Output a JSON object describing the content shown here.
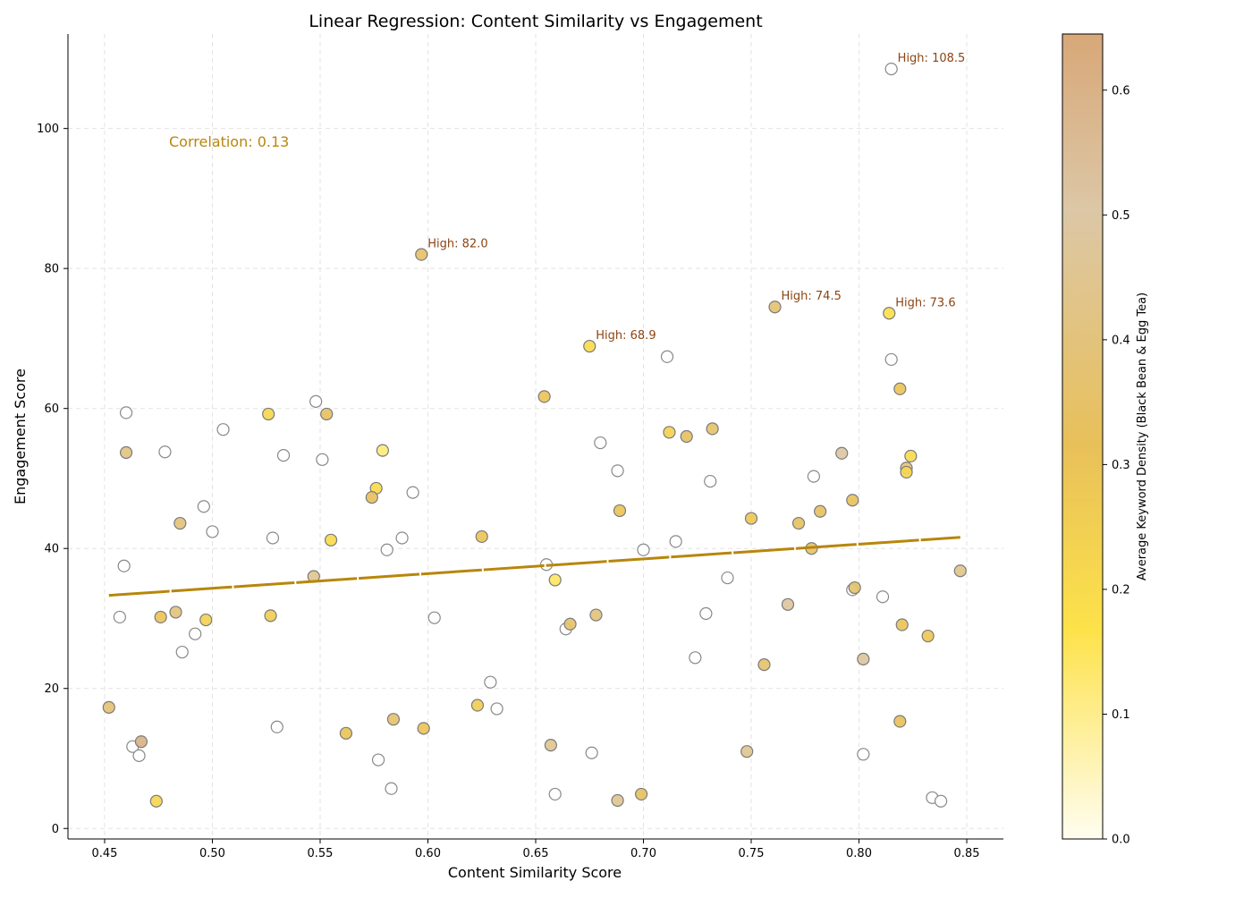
{
  "chart_data": {
    "type": "scatter",
    "title": "Linear Regression: Content Similarity vs Engagement",
    "xlabel": "Content Similarity Score",
    "ylabel": "Engagement Score",
    "xlim": [
      0.433,
      0.867
    ],
    "ylim": [
      -1.5,
      113.5
    ],
    "x_ticks": [
      0.45,
      0.5,
      0.55,
      0.6,
      0.65,
      0.7,
      0.75,
      0.8,
      0.85
    ],
    "x_tick_labels": [
      "0.45",
      "0.50",
      "0.55",
      "0.60",
      "0.65",
      "0.70",
      "0.75",
      "0.80",
      "0.85"
    ],
    "y_ticks": [
      0,
      20,
      40,
      60,
      80,
      100
    ],
    "y_tick_labels": [
      "0",
      "20",
      "40",
      "60",
      "80",
      "100"
    ],
    "grid": true,
    "colorbar": {
      "label": "Average Keyword Density (Black Bean & Egg Tea)",
      "range": [
        0.0,
        0.645
      ],
      "ticks": [
        0.0,
        0.1,
        0.2,
        0.3,
        0.4,
        0.5,
        0.6
      ],
      "tick_labels": [
        "0.0",
        "0.1",
        "0.2",
        "0.3",
        "0.4",
        "0.5",
        "0.6"
      ],
      "colors": [
        "#fffdf0",
        "#fde24a",
        "#e8c05a",
        "#dcc7a6",
        "#d8a878"
      ]
    },
    "regression_line": {
      "x": [
        0.452,
        0.847
      ],
      "y": [
        33.3,
        41.6
      ],
      "color": "#b8860b"
    },
    "correlation_text": "Correlation: 0.13",
    "annotations": [
      {
        "text": "High: 108.5",
        "x": 0.815,
        "y": 108.5
      },
      {
        "text": "High: 82.0",
        "x": 0.597,
        "y": 82.0
      },
      {
        "text": "High: 74.5",
        "x": 0.761,
        "y": 74.5
      },
      {
        "text": "High: 73.6",
        "x": 0.814,
        "y": 73.6
      },
      {
        "text": "High: 68.9",
        "x": 0.675,
        "y": 68.9
      }
    ],
    "points_no_keyword": [
      [
        0.815,
        108.5
      ],
      [
        0.711,
        67.4
      ],
      [
        0.815,
        67.0
      ],
      [
        0.46,
        59.4
      ],
      [
        0.548,
        61.0
      ],
      [
        0.505,
        57.0
      ],
      [
        0.478,
        53.8
      ],
      [
        0.533,
        53.3
      ],
      [
        0.551,
        52.7
      ],
      [
        0.68,
        55.1
      ],
      [
        0.688,
        51.1
      ],
      [
        0.731,
        49.6
      ],
      [
        0.779,
        50.3
      ],
      [
        0.593,
        48.0
      ],
      [
        0.496,
        46.0
      ],
      [
        0.5,
        42.4
      ],
      [
        0.528,
        41.5
      ],
      [
        0.588,
        41.5
      ],
      [
        0.581,
        39.8
      ],
      [
        0.715,
        41.0
      ],
      [
        0.7,
        39.8
      ],
      [
        0.459,
        37.5
      ],
      [
        0.655,
        37.7
      ],
      [
        0.739,
        35.8
      ],
      [
        0.797,
        34.1
      ],
      [
        0.811,
        33.1
      ],
      [
        0.457,
        30.2
      ],
      [
        0.603,
        30.1
      ],
      [
        0.729,
        30.7
      ],
      [
        0.492,
        27.8
      ],
      [
        0.664,
        28.5
      ],
      [
        0.486,
        25.2
      ],
      [
        0.724,
        24.4
      ],
      [
        0.629,
        20.9
      ],
      [
        0.632,
        17.1
      ],
      [
        0.53,
        14.5
      ],
      [
        0.463,
        11.7
      ],
      [
        0.466,
        10.4
      ],
      [
        0.676,
        10.8
      ],
      [
        0.802,
        10.6
      ],
      [
        0.577,
        9.8
      ],
      [
        0.583,
        5.7
      ],
      [
        0.659,
        4.9
      ],
      [
        0.834,
        4.4
      ],
      [
        0.838,
        3.9
      ]
    ],
    "points_keyword": [
      [
        0.597,
        82.0,
        0.35
      ],
      [
        0.761,
        74.5,
        0.38
      ],
      [
        0.814,
        73.6,
        0.18
      ],
      [
        0.675,
        68.9,
        0.2
      ],
      [
        0.654,
        61.7,
        0.3
      ],
      [
        0.819,
        62.8,
        0.3
      ],
      [
        0.526,
        59.2,
        0.22
      ],
      [
        0.553,
        59.2,
        0.34
      ],
      [
        0.46,
        53.7,
        0.42
      ],
      [
        0.579,
        54.0,
        0.12
      ],
      [
        0.712,
        56.6,
        0.24
      ],
      [
        0.72,
        56.0,
        0.34
      ],
      [
        0.732,
        57.1,
        0.36
      ],
      [
        0.792,
        53.6,
        0.5
      ],
      [
        0.822,
        51.5,
        0.4
      ],
      [
        0.824,
        53.2,
        0.2
      ],
      [
        0.822,
        50.9,
        0.22
      ],
      [
        0.576,
        48.6,
        0.2
      ],
      [
        0.574,
        47.3,
        0.32
      ],
      [
        0.689,
        45.4,
        0.3
      ],
      [
        0.797,
        46.9,
        0.33
      ],
      [
        0.782,
        45.3,
        0.34
      ],
      [
        0.485,
        43.6,
        0.4
      ],
      [
        0.75,
        44.3,
        0.28
      ],
      [
        0.772,
        43.6,
        0.34
      ],
      [
        0.625,
        41.7,
        0.3
      ],
      [
        0.555,
        41.2,
        0.2
      ],
      [
        0.778,
        40.0,
        0.36
      ],
      [
        0.547,
        36.0,
        0.45
      ],
      [
        0.659,
        35.5,
        0.14
      ],
      [
        0.798,
        34.4,
        0.36
      ],
      [
        0.847,
        36.8,
        0.44
      ],
      [
        0.767,
        32.0,
        0.48
      ],
      [
        0.476,
        30.2,
        0.3
      ],
      [
        0.483,
        30.9,
        0.4
      ],
      [
        0.497,
        29.8,
        0.24
      ],
      [
        0.527,
        30.4,
        0.26
      ],
      [
        0.678,
        30.5,
        0.4
      ],
      [
        0.666,
        29.2,
        0.36
      ],
      [
        0.82,
        29.1,
        0.3
      ],
      [
        0.832,
        27.5,
        0.28
      ],
      [
        0.802,
        24.2,
        0.48
      ],
      [
        0.756,
        23.4,
        0.36
      ],
      [
        0.452,
        17.3,
        0.38
      ],
      [
        0.623,
        17.6,
        0.26
      ],
      [
        0.584,
        15.6,
        0.36
      ],
      [
        0.598,
        14.3,
        0.3
      ],
      [
        0.562,
        13.6,
        0.3
      ],
      [
        0.819,
        15.3,
        0.32
      ],
      [
        0.467,
        12.4,
        0.6
      ],
      [
        0.657,
        11.9,
        0.45
      ],
      [
        0.748,
        11.0,
        0.45
      ],
      [
        0.474,
        3.9,
        0.22
      ],
      [
        0.699,
        4.9,
        0.34
      ],
      [
        0.688,
        4.0,
        0.45
      ]
    ]
  }
}
